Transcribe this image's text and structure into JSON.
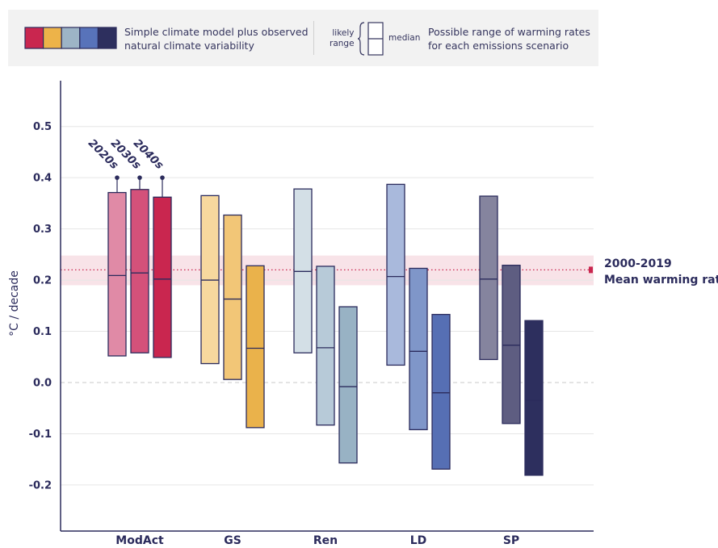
{
  "legend": {
    "swatch_colors": [
      "#c9264f",
      "#edb349",
      "#9db4c6",
      "#5873ba",
      "#2d2f5e"
    ],
    "model_text_line1": "Simple climate model plus observed",
    "model_text_line2": "natural climate variability",
    "likely_label_line1": "likely",
    "likely_label_line2": "range",
    "median_label": "median",
    "range_text_line1": "Possible range of warming rates",
    "range_text_line2": "for each emissions scenario"
  },
  "chart_data": {
    "type": "boxplot",
    "ylabel": "°C / decade",
    "ylim": [
      -0.29,
      0.6
    ],
    "yticks": [
      -0.2,
      -0.1,
      0.0,
      0.1,
      0.2,
      0.3,
      0.4,
      0.5
    ],
    "ytick_labels": [
      "-0.2",
      "-0.1",
      "0.0",
      "0.1",
      "0.2",
      "0.3",
      "0.4",
      "0.5"
    ],
    "grid": true,
    "categories": [
      "ModAct",
      "GS",
      "Ren",
      "LD",
      "SP"
    ],
    "decades": [
      "2020s",
      "2030s",
      "2040s"
    ],
    "groups": [
      {
        "name": "ModAct",
        "boxes": [
          {
            "decade": "2020s",
            "low": 0.052,
            "median": 0.209,
            "high": 0.371,
            "whisker_top": 0.4,
            "color": "#e08aa6"
          },
          {
            "decade": "2030s",
            "low": 0.058,
            "median": 0.214,
            "high": 0.377,
            "whisker_top": 0.4,
            "color": "#d4517a"
          },
          {
            "decade": "2040s",
            "low": 0.049,
            "median": 0.202,
            "high": 0.362,
            "whisker_top": 0.4,
            "color": "#c9264f"
          }
        ]
      },
      {
        "name": "GS",
        "boxes": [
          {
            "decade": "2020s",
            "low": 0.037,
            "median": 0.2,
            "high": 0.365,
            "color": "#f7d89e"
          },
          {
            "decade": "2030s",
            "low": 0.006,
            "median": 0.163,
            "high": 0.327,
            "color": "#f2c677"
          },
          {
            "decade": "2040s",
            "low": -0.088,
            "median": 0.067,
            "high": 0.228,
            "color": "#eab24b"
          }
        ]
      },
      {
        "name": "Ren",
        "boxes": [
          {
            "decade": "2020s",
            "low": 0.058,
            "median": 0.217,
            "high": 0.378,
            "color": "#d3dfe6"
          },
          {
            "decade": "2030s",
            "low": -0.083,
            "median": 0.068,
            "high": 0.227,
            "color": "#b7cad8"
          },
          {
            "decade": "2040s",
            "low": -0.157,
            "median": -0.008,
            "high": 0.148,
            "color": "#98b2c4"
          }
        ]
      },
      {
        "name": "LD",
        "boxes": [
          {
            "decade": "2020s",
            "low": 0.034,
            "median": 0.207,
            "high": 0.387,
            "color": "#a9b9dc"
          },
          {
            "decade": "2030s",
            "low": -0.092,
            "median": 0.061,
            "high": 0.223,
            "color": "#7f96c9"
          },
          {
            "decade": "2040s",
            "low": -0.169,
            "median": -0.02,
            "high": 0.133,
            "color": "#566fb4"
          }
        ]
      },
      {
        "name": "SP",
        "boxes": [
          {
            "decade": "2020s",
            "low": 0.045,
            "median": 0.202,
            "high": 0.364,
            "color": "#85849e"
          },
          {
            "decade": "2030s",
            "low": -0.08,
            "median": 0.073,
            "high": 0.229,
            "color": "#5e5d81"
          },
          {
            "decade": "2040s",
            "low": -0.181,
            "median": -0.035,
            "high": 0.121,
            "color": "#2d2f5e"
          }
        ]
      }
    ],
    "reference": {
      "value": 0.22,
      "band": [
        0.19,
        0.248
      ],
      "label_line1": "2000-2019",
      "label_line2": "Mean warming rate",
      "color": "#c9264f"
    }
  }
}
